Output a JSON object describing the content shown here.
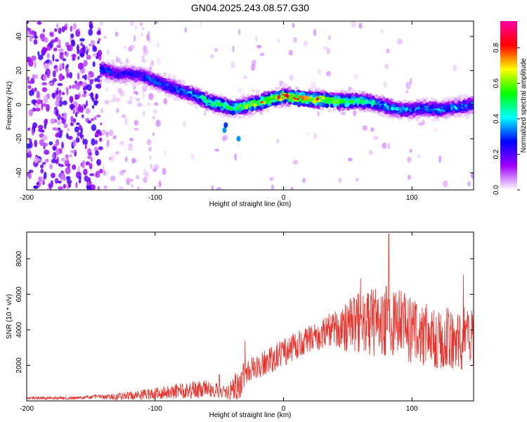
{
  "figure": {
    "title": "GN04.2025.243.08.57.G30"
  },
  "chart_data": [
    {
      "type": "heatmap",
      "title": "",
      "xlabel": "Height of straight line (km)",
      "ylabel": "Frequency (Hz)",
      "xlim": [
        -200,
        148
      ],
      "ylim": [
        -50,
        49
      ],
      "xticks": [
        -200,
        -100,
        0,
        100
      ],
      "yticks": [
        -40,
        -20,
        0,
        20,
        40
      ],
      "colorbar": {
        "label": "Normalized spectral amplitude",
        "range": [
          0.0,
          0.95
        ],
        "ticks": [
          0.0,
          0.2,
          0.4,
          0.6,
          0.8
        ],
        "colors": [
          "#ffffff",
          "#a000ff",
          "#0000ff",
          "#00ffff",
          "#00ff00",
          "#ffff00",
          "#ff0000",
          "#ff00a0"
        ]
      },
      "ridge": {
        "description": "frequency of peak spectral amplitude vs height",
        "x": [
          -142,
          -130,
          -120,
          -110,
          -100,
          -90,
          -80,
          -70,
          -60,
          -50,
          -40,
          -30,
          -20,
          -10,
          0,
          10,
          20,
          30,
          40,
          50,
          60,
          70,
          80,
          90,
          100,
          110,
          120,
          130,
          140,
          148
        ],
        "y": [
          21,
          18,
          18,
          17,
          14,
          11,
          8,
          6,
          2,
          0,
          -2,
          -1,
          1,
          3,
          5,
          4,
          3,
          3,
          2,
          2,
          2,
          1,
          -1,
          -3,
          -3,
          -2,
          -3,
          -2,
          -1,
          0
        ],
        "amplitude": [
          0.35,
          0.3,
          0.3,
          0.3,
          0.35,
          0.35,
          0.4,
          0.45,
          0.55,
          0.6,
          0.6,
          0.65,
          0.75,
          0.8,
          0.9,
          0.85,
          0.8,
          0.8,
          0.7,
          0.6,
          0.55,
          0.5,
          0.45,
          0.45,
          0.4,
          0.4,
          0.4,
          0.4,
          0.4,
          0.4
        ]
      },
      "noise_region_x": [
        -200,
        -142
      ]
    },
    {
      "type": "line",
      "title": "",
      "xlabel": "Height of straight line (km)",
      "ylabel": "SNR (10 * v/v)",
      "xlim": [
        -200,
        148
      ],
      "ylim": [
        0,
        9500
      ],
      "xticks": [
        -200,
        -100,
        0,
        100
      ],
      "yticks": [
        2000,
        4000,
        6000,
        8000
      ],
      "color": "#e8322c",
      "series": [
        {
          "name": "SNR",
          "x": [
            -200,
            -160,
            -142,
            -140,
            -120,
            -100,
            -80,
            -60,
            -45,
            -35,
            -30,
            -20,
            -10,
            0,
            10,
            20,
            30,
            40,
            50,
            60,
            70,
            80,
            90,
            100,
            110,
            120,
            130,
            140,
            148
          ],
          "mean": [
            150,
            160,
            280,
            200,
            300,
            400,
            550,
            700,
            450,
            900,
            1600,
            1900,
            2300,
            2700,
            3100,
            3400,
            3800,
            4100,
            4200,
            4400,
            4400,
            4500,
            4300,
            3900,
            3700,
            3600,
            3600,
            3500,
            3500
          ],
          "spread": [
            80,
            90,
            120,
            150,
            250,
            350,
            450,
            500,
            350,
            1000,
            700,
            700,
            750,
            800,
            800,
            850,
            900,
            1000,
            1500,
            1800,
            1900,
            2000,
            2000,
            1900,
            1800,
            1800,
            1800,
            1800,
            1700
          ],
          "peaks": [
            [
              -50,
              1500
            ],
            [
              -30,
              3400
            ],
            [
              60,
              6900
            ],
            [
              82,
              9400
            ],
            [
              140,
              7100
            ]
          ]
        }
      ]
    }
  ]
}
